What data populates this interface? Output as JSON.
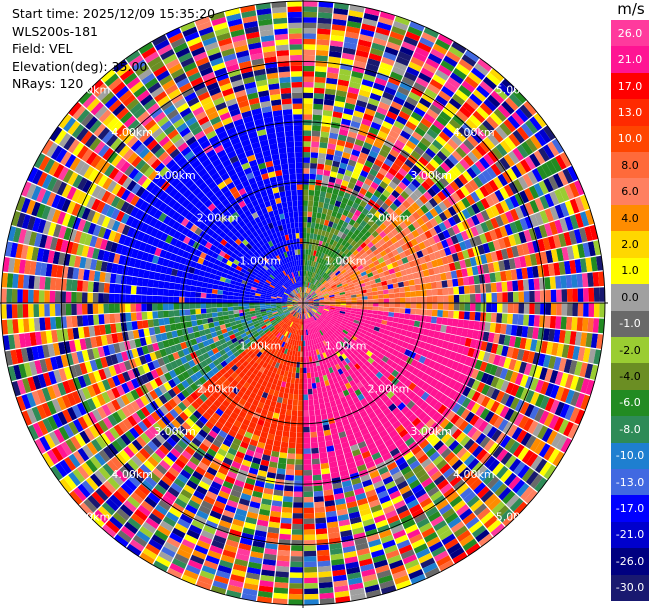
{
  "header": {
    "start_time": "Start time: 2025/12/09 15:35:20",
    "station": "WLS200s-181",
    "field": "Field: VEL",
    "elevation": "Elevation(deg): 35.00",
    "nrays": "NRays: 120"
  },
  "colorbar": {
    "unit": "m/s",
    "ticks": [
      "26.0",
      "21.0",
      "17.0",
      "13.0",
      "10.0",
      "8.0",
      "6.0",
      "4.0",
      "2.0",
      "1.0",
      "0.0",
      "-1.0",
      "-2.0",
      "-4.0",
      "-6.0",
      "-8.0",
      "-10.0",
      "-13.0",
      "-17.0",
      "-21.0",
      "-26.0",
      "-30.0"
    ],
    "colors": [
      "#ff3a9d",
      "#ff1493",
      "#ff0000",
      "#ff2a00",
      "#ff4500",
      "#ff6a3a",
      "#ff8060",
      "#ff8c00",
      "#ffd700",
      "#ffff00",
      "#a0a0a0",
      "#696969",
      "#9acd32",
      "#6b8e23",
      "#228b22",
      "#2e8b57",
      "#1e7fd0",
      "#4169e1",
      "#0000ff",
      "#0000cd",
      "#000080",
      "#191970"
    ]
  },
  "chart_data": {
    "type": "ppi",
    "field": "VEL",
    "units": "m/s",
    "n_rays": 120,
    "elevation_deg": 35.0,
    "range_km_max": 5.0,
    "range_rings_km": [
      1.0,
      2.0,
      3.0,
      4.0,
      5.0
    ],
    "range_ring_labels": [
      "1.00km",
      "2.00km",
      "3.00km",
      "4.00km",
      "5.00km"
    ],
    "color_scale_m_s": [
      26.0,
      21.0,
      17.0,
      13.0,
      10.0,
      8.0,
      6.0,
      4.0,
      2.0,
      1.0,
      0.0,
      -1.0,
      -2.0,
      -4.0,
      -6.0,
      -8.0,
      -10.0,
      -13.0,
      -17.0,
      -21.0,
      -26.0,
      -30.0
    ],
    "velocity_sectors": [
      {
        "azimuth_range_deg": [
          270,
          360
        ],
        "range_km": [
          0.3,
          3.2
        ],
        "value_m_s": -17.0
      },
      {
        "azimuth_range_deg": [
          0,
          45
        ],
        "range_km": [
          0.3,
          2.0
        ],
        "value_m_s": -6.0
      },
      {
        "azimuth_range_deg": [
          45,
          95
        ],
        "range_km": [
          0.3,
          2.5
        ],
        "value_m_s": 6.0
      },
      {
        "azimuth_range_deg": [
          95,
          180
        ],
        "range_km": [
          0.3,
          3.0
        ],
        "value_m_s": 21.0
      },
      {
        "azimuth_range_deg": [
          180,
          230
        ],
        "range_km": [
          0.3,
          2.5
        ],
        "value_m_s": 13.0
      },
      {
        "azimuth_range_deg": [
          230,
          270
        ],
        "range_km": [
          0.3,
          2.5
        ],
        "value_m_s": -8.0
      }
    ]
  }
}
